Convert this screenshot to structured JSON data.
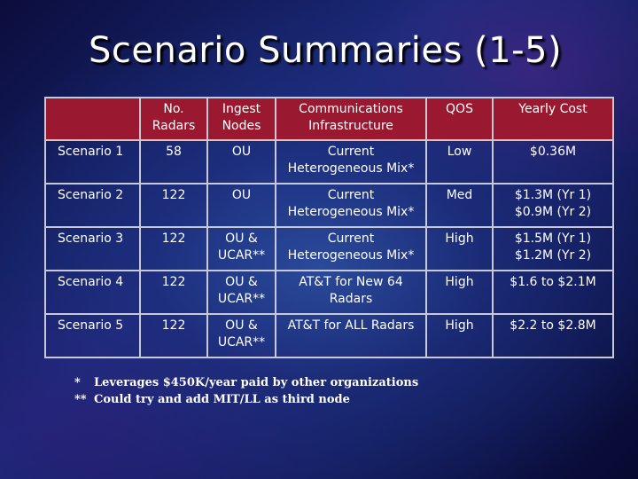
{
  "slide": {
    "title": "Scenario Summaries (1-5)"
  },
  "table": {
    "headers": [
      "",
      "No. Radars",
      "Ingest Nodes",
      "Communications Infrastructure",
      "QOS",
      "Yearly Cost"
    ],
    "rows": [
      [
        "Scenario 1",
        "58",
        "OU",
        "Current Heterogeneous Mix*",
        "Low",
        "$0.36M"
      ],
      [
        "Scenario 2",
        "122",
        "OU",
        "Current Heterogeneous Mix*",
        "Med",
        "$1.3M (Yr 1) $0.9M (Yr 2)"
      ],
      [
        "Scenario 3",
        "122",
        "OU & UCAR**",
        "Current Heterogeneous Mix*",
        "High",
        "$1.5M (Yr 1) $1.2M (Yr 2)"
      ],
      [
        "Scenario 4",
        "122",
        "OU & UCAR**",
        "AT&T for New 64 Radars",
        "High",
        "$1.6 to $2.1M"
      ],
      [
        "Scenario 5",
        "122",
        "OU & UCAR**",
        "AT&T for ALL Radars",
        "High",
        "$2.2 to $2.8M"
      ]
    ]
  },
  "footnotes": [
    {
      "mark": "*",
      "text": "Leverages $450K/year paid by other organizations"
    },
    {
      "mark": "**",
      "text": "Could try and add MIT/LL as third node"
    }
  ],
  "colors": {
    "header_fill": "#9a1830",
    "grid_line": "#c9c9d6",
    "background": "#1b2a7a",
    "text": "#ffffff"
  }
}
